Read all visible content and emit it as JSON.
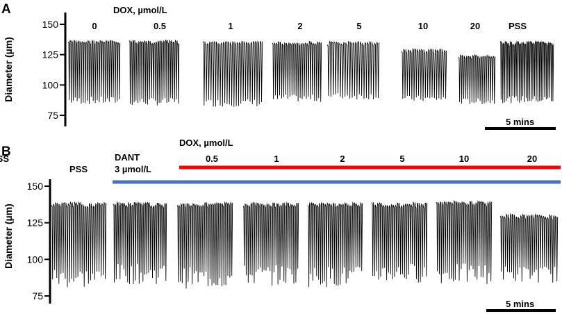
{
  "chart_data": [
    {
      "panel": "A",
      "type": "line",
      "ylabel": "Diameter (µm)",
      "yticks": [
        75,
        100,
        125,
        150
      ],
      "condition_header": "DOX, µmol/L",
      "segments": [
        {
          "label": "0",
          "max": 137,
          "min": 84,
          "cycles": 26
        },
        {
          "label": "0.5",
          "max": 137,
          "min": 83,
          "cycles": 26
        },
        {
          "label": "1",
          "max": 136,
          "min": 82,
          "cycles": 26
        },
        {
          "label": "2",
          "max": 136,
          "min": 86,
          "cycles": 24
        },
        {
          "label": "5",
          "max": 136,
          "min": 88,
          "cycles": 22
        },
        {
          "label": "10",
          "max": 130,
          "min": 86,
          "cycles": 20
        },
        {
          "label": "20",
          "max": 125,
          "min": 84,
          "cycles": 18
        },
        {
          "label": "PSS",
          "max": 136,
          "min": 85,
          "cycles": 32
        }
      ],
      "scale_bar": "5 mins"
    },
    {
      "panel": "B",
      "type": "line",
      "ylabel": "Diameter (µm)",
      "yticks": [
        75,
        100,
        125,
        150
      ],
      "pre_label": "PSS",
      "treatment": {
        "name": "DANT",
        "dose": "3 µmol/L",
        "color": "#4472c4"
      },
      "condition_header": "DOX, µmol/L",
      "dox_bar_color": "#ff0000",
      "segments": [
        {
          "label": "PSS",
          "max": 139,
          "min": 80,
          "cycles": 26
        },
        {
          "label": "",
          "max": 139,
          "min": 83,
          "cycles": 28
        },
        {
          "label": "0.5",
          "max": 139,
          "min": 80,
          "cycles": 28
        },
        {
          "label": "1",
          "max": 139,
          "min": 82,
          "cycles": 28
        },
        {
          "label": "2",
          "max": 139,
          "min": 81,
          "cycles": 28
        },
        {
          "label": "5",
          "max": 139,
          "min": 84,
          "cycles": 28
        },
        {
          "label": "10",
          "max": 140,
          "min": 83,
          "cycles": 28
        },
        {
          "label": "20",
          "max": 131,
          "min": 84,
          "cycles": 28
        }
      ],
      "scale_bar": "5 mins"
    }
  ]
}
